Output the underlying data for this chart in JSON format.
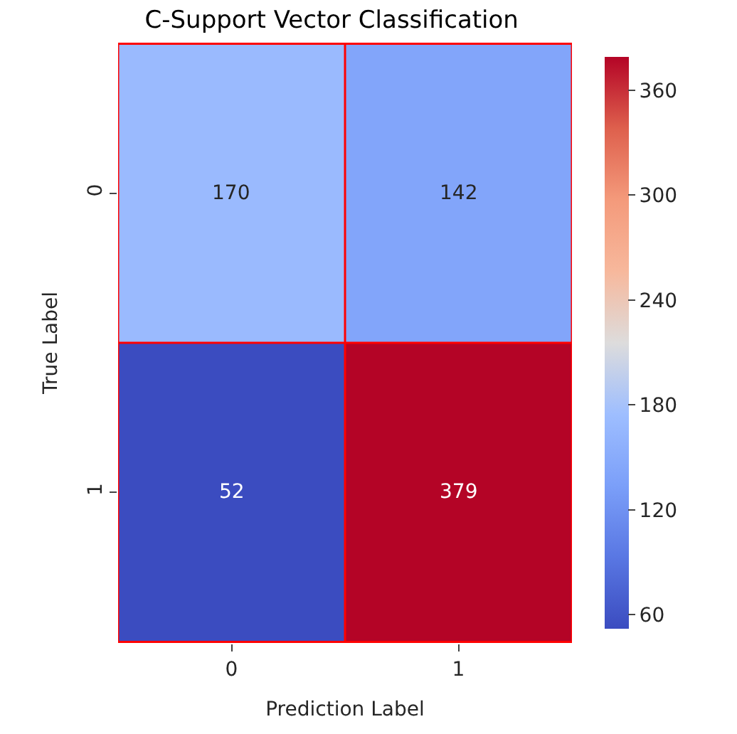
{
  "chart_data": {
    "type": "heatmap",
    "title": "C-Support Vector Classification",
    "xlabel": "Prediction Label",
    "ylabel": "True Label",
    "categories": [
      "0",
      "1"
    ],
    "y_categories": [
      "0",
      "1"
    ],
    "cells": [
      [
        170,
        142
      ],
      [
        52,
        379
      ]
    ],
    "data_labels": true,
    "clim": [
      52,
      379
    ],
    "cticks": [
      60,
      120,
      180,
      240,
      300,
      360
    ]
  }
}
